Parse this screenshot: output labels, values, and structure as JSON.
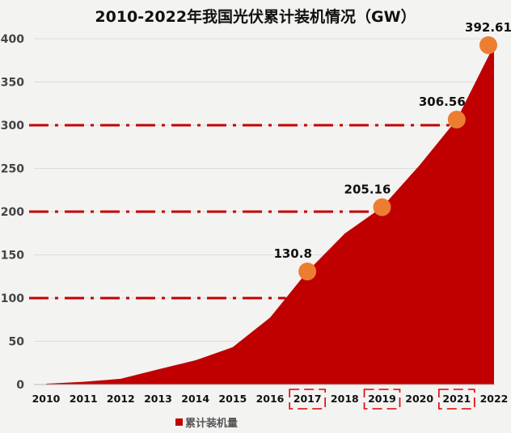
{
  "chart_data": {
    "type": "area",
    "title": "2010-2022年我国光伏累计装机情况（GW）",
    "categories": [
      "2010",
      "2011",
      "2012",
      "2013",
      "2014",
      "2015",
      "2016",
      "2017",
      "2018",
      "2019",
      "2020",
      "2021",
      "2022"
    ],
    "series": [
      {
        "name": "累计装机量",
        "values": [
          0.9,
          3.1,
          6.7,
          17.5,
          28,
          43.2,
          77.4,
          130.8,
          174.6,
          205.16,
          253.4,
          306.56,
          392.61
        ],
        "color": "#c00000"
      }
    ],
    "ylim": [
      0,
      400
    ],
    "yticks": [
      0,
      50,
      100,
      150,
      200,
      250,
      300,
      350,
      400
    ],
    "grid": true,
    "legend_position": "bottom",
    "highlight_points": [
      {
        "category": "2017",
        "label": "130.8"
      },
      {
        "category": "2019",
        "label": "205.16"
      },
      {
        "category": "2021",
        "label": "306.56"
      },
      {
        "category": "2022",
        "label": "392.61"
      }
    ],
    "reference_lines": [
      100,
      200,
      300
    ],
    "highlighted_categories": [
      "2017",
      "2019",
      "2021"
    ],
    "marker_color": "#ed7d31"
  }
}
